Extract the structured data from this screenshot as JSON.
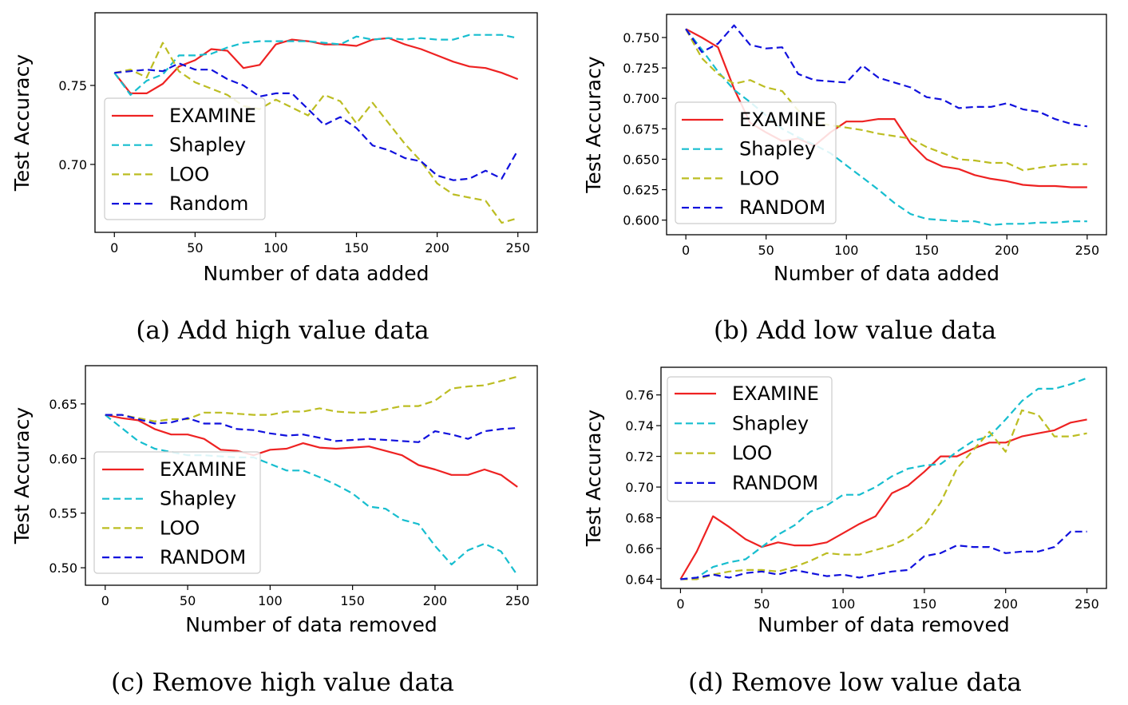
{
  "chart_data": [
    {
      "id": "a",
      "type": "line",
      "caption": "(a) Add high value data",
      "xlabel": "Number of data added",
      "ylabel": "Test Accuracy",
      "xlim": [
        -12,
        262
      ],
      "ylim": [
        0.657,
        0.796
      ],
      "xticks": [
        0,
        50,
        100,
        150,
        200,
        250
      ],
      "yticks": [
        0.7,
        0.75
      ],
      "ytick_labels": [
        "0.70",
        "0.75"
      ],
      "grid": false,
      "legend_position": "lower-left",
      "x": [
        0,
        10,
        20,
        30,
        40,
        50,
        60,
        70,
        80,
        90,
        100,
        110,
        120,
        130,
        140,
        150,
        160,
        170,
        180,
        190,
        200,
        210,
        220,
        230,
        240,
        250
      ],
      "series": [
        {
          "name": "EXAMINE",
          "color": "#ee2222",
          "style": "solid",
          "values": [
            0.758,
            0.745,
            0.745,
            0.751,
            0.762,
            0.766,
            0.773,
            0.772,
            0.761,
            0.763,
            0.776,
            0.779,
            0.778,
            0.776,
            0.776,
            0.775,
            0.779,
            0.78,
            0.776,
            0.773,
            0.769,
            0.765,
            0.762,
            0.761,
            0.758,
            0.754
          ]
        },
        {
          "name": "Shapley",
          "color": "#17becf",
          "style": "dashed",
          "values": [
            0.758,
            0.744,
            0.753,
            0.757,
            0.769,
            0.769,
            0.77,
            0.774,
            0.777,
            0.778,
            0.778,
            0.778,
            0.778,
            0.777,
            0.776,
            0.781,
            0.779,
            0.78,
            0.779,
            0.78,
            0.779,
            0.779,
            0.782,
            0.782,
            0.782,
            0.78
          ]
        },
        {
          "name": "LOO",
          "color": "#bcbd22",
          "style": "dashed",
          "values": [
            0.758,
            0.76,
            0.755,
            0.777,
            0.759,
            0.752,
            0.748,
            0.744,
            0.737,
            0.735,
            0.741,
            0.736,
            0.731,
            0.744,
            0.74,
            0.726,
            0.739,
            0.726,
            0.713,
            0.702,
            0.688,
            0.681,
            0.679,
            0.677,
            0.663,
            0.666
          ]
        },
        {
          "name": "Random",
          "color": "#1111dd",
          "style": "dashed",
          "values": [
            0.758,
            0.759,
            0.76,
            0.759,
            0.764,
            0.76,
            0.76,
            0.754,
            0.75,
            0.743,
            0.745,
            0.745,
            0.735,
            0.725,
            0.73,
            0.723,
            0.712,
            0.709,
            0.704,
            0.702,
            0.693,
            0.69,
            0.691,
            0.696,
            0.691,
            0.709
          ]
        }
      ]
    },
    {
      "id": "b",
      "type": "line",
      "caption": "(b) Add low value data",
      "xlabel": "Number of data added",
      "ylabel": "Test Accuracy",
      "xlim": [
        -12,
        262
      ],
      "ylim": [
        0.588,
        0.769
      ],
      "xticks": [
        0,
        50,
        100,
        150,
        200,
        250
      ],
      "yticks": [
        0.6,
        0.625,
        0.65,
        0.675,
        0.7,
        0.725,
        0.75
      ],
      "ytick_labels": [
        "0.600",
        "0.625",
        "0.650",
        "0.675",
        "0.700",
        "0.725",
        "0.750"
      ],
      "grid": false,
      "legend_position": "lower-left",
      "x": [
        0,
        10,
        20,
        30,
        40,
        50,
        60,
        70,
        80,
        90,
        100,
        110,
        120,
        130,
        140,
        150,
        160,
        170,
        180,
        190,
        200,
        210,
        220,
        230,
        240,
        250
      ],
      "series": [
        {
          "name": "EXAMINE",
          "color": "#ee2222",
          "style": "solid",
          "values": [
            0.757,
            0.75,
            0.742,
            0.708,
            0.68,
            0.672,
            0.665,
            0.667,
            0.661,
            0.672,
            0.681,
            0.681,
            0.683,
            0.683,
            0.663,
            0.65,
            0.644,
            0.642,
            0.637,
            0.634,
            0.632,
            0.629,
            0.628,
            0.628,
            0.627,
            0.627
          ]
        },
        {
          "name": "Shapley",
          "color": "#17becf",
          "style": "dashed",
          "values": [
            0.757,
            0.74,
            0.722,
            0.707,
            0.697,
            0.686,
            0.675,
            0.668,
            0.662,
            0.655,
            0.645,
            0.635,
            0.625,
            0.614,
            0.605,
            0.601,
            0.6,
            0.599,
            0.599,
            0.596,
            0.597,
            0.597,
            0.598,
            0.598,
            0.599,
            0.599
          ]
        },
        {
          "name": "LOO",
          "color": "#bcbd22",
          "style": "dashed",
          "values": [
            0.757,
            0.733,
            0.72,
            0.712,
            0.715,
            0.709,
            0.706,
            0.69,
            0.68,
            0.678,
            0.676,
            0.674,
            0.671,
            0.669,
            0.667,
            0.66,
            0.655,
            0.65,
            0.649,
            0.647,
            0.647,
            0.641,
            0.643,
            0.645,
            0.646,
            0.646
          ]
        },
        {
          "name": "RANDOM",
          "color": "#1111dd",
          "style": "dashed",
          "values": [
            0.757,
            0.738,
            0.745,
            0.76,
            0.744,
            0.741,
            0.742,
            0.72,
            0.715,
            0.714,
            0.713,
            0.727,
            0.717,
            0.713,
            0.709,
            0.701,
            0.699,
            0.692,
            0.693,
            0.693,
            0.696,
            0.691,
            0.689,
            0.683,
            0.679,
            0.677
          ]
        }
      ]
    },
    {
      "id": "c",
      "type": "line",
      "caption": "(c) Remove high value data",
      "xlabel": "Number of data removed",
      "ylabel": "Test Accuracy",
      "xlim": [
        -12,
        262
      ],
      "ylim": [
        0.484,
        0.685
      ],
      "xticks": [
        0,
        50,
        100,
        150,
        200,
        250
      ],
      "yticks": [
        0.5,
        0.55,
        0.6,
        0.65
      ],
      "ytick_labels": [
        "0.50",
        "0.55",
        "0.60",
        "0.65"
      ],
      "grid": false,
      "legend_position": "lower-left",
      "x": [
        0,
        10,
        20,
        30,
        40,
        50,
        60,
        70,
        80,
        90,
        100,
        110,
        120,
        130,
        140,
        150,
        160,
        170,
        180,
        190,
        200,
        210,
        220,
        230,
        240,
        250
      ],
      "series": [
        {
          "name": "EXAMINE",
          "color": "#ee2222",
          "style": "solid",
          "values": [
            0.64,
            0.637,
            0.635,
            0.627,
            0.622,
            0.622,
            0.618,
            0.608,
            0.607,
            0.603,
            0.608,
            0.609,
            0.614,
            0.61,
            0.609,
            0.61,
            0.611,
            0.607,
            0.603,
            0.594,
            0.59,
            0.585,
            0.585,
            0.59,
            0.585,
            0.574
          ]
        },
        {
          "name": "Shapley",
          "color": "#17becf",
          "style": "dashed",
          "values": [
            0.64,
            0.628,
            0.616,
            0.609,
            0.606,
            0.603,
            0.603,
            0.602,
            0.601,
            0.601,
            0.595,
            0.589,
            0.589,
            0.583,
            0.576,
            0.568,
            0.556,
            0.554,
            0.544,
            0.54,
            0.52,
            0.503,
            0.516,
            0.522,
            0.515,
            0.493
          ]
        },
        {
          "name": "LOO",
          "color": "#bcbd22",
          "style": "dashed",
          "values": [
            0.64,
            0.64,
            0.637,
            0.634,
            0.636,
            0.636,
            0.642,
            0.642,
            0.641,
            0.64,
            0.64,
            0.643,
            0.643,
            0.646,
            0.643,
            0.642,
            0.642,
            0.645,
            0.648,
            0.648,
            0.653,
            0.664,
            0.666,
            0.667,
            0.671,
            0.675
          ]
        },
        {
          "name": "RANDOM",
          "color": "#1111dd",
          "style": "dashed",
          "values": [
            0.64,
            0.64,
            0.636,
            0.632,
            0.633,
            0.637,
            0.632,
            0.632,
            0.627,
            0.626,
            0.623,
            0.621,
            0.622,
            0.619,
            0.616,
            0.617,
            0.618,
            0.617,
            0.616,
            0.615,
            0.625,
            0.622,
            0.618,
            0.625,
            0.627,
            0.628
          ]
        }
      ]
    },
    {
      "id": "d",
      "type": "line",
      "caption": "(d) Remove low value data",
      "xlabel": "Number of data removed",
      "ylabel": "Test Accuracy",
      "xlim": [
        -12,
        262
      ],
      "ylim": [
        0.634,
        0.778
      ],
      "xticks": [
        0,
        50,
        100,
        150,
        200,
        250
      ],
      "yticks": [
        0.64,
        0.66,
        0.68,
        0.7,
        0.72,
        0.74,
        0.76
      ],
      "ytick_labels": [
        "0.64",
        "0.66",
        "0.68",
        "0.70",
        "0.72",
        "0.74",
        "0.76"
      ],
      "grid": false,
      "legend_position": "upper-left",
      "x": [
        0,
        10,
        20,
        30,
        40,
        50,
        60,
        70,
        80,
        90,
        100,
        110,
        120,
        130,
        140,
        150,
        160,
        170,
        180,
        190,
        200,
        210,
        220,
        230,
        240,
        250
      ],
      "series": [
        {
          "name": "EXAMINE",
          "color": "#ee2222",
          "style": "solid",
          "values": [
            0.64,
            0.658,
            0.681,
            0.674,
            0.666,
            0.661,
            0.664,
            0.662,
            0.662,
            0.664,
            0.67,
            0.676,
            0.681,
            0.696,
            0.701,
            0.71,
            0.72,
            0.72,
            0.725,
            0.729,
            0.729,
            0.733,
            0.735,
            0.737,
            0.742,
            0.744
          ]
        },
        {
          "name": "Shapley",
          "color": "#17becf",
          "style": "dashed",
          "values": [
            0.64,
            0.641,
            0.648,
            0.651,
            0.653,
            0.661,
            0.669,
            0.675,
            0.684,
            0.688,
            0.695,
            0.695,
            0.7,
            0.707,
            0.712,
            0.714,
            0.715,
            0.723,
            0.73,
            0.733,
            0.744,
            0.756,
            0.764,
            0.764,
            0.767,
            0.771
          ]
        },
        {
          "name": "LOO",
          "color": "#bcbd22",
          "style": "dashed",
          "values": [
            0.64,
            0.64,
            0.643,
            0.645,
            0.646,
            0.646,
            0.645,
            0.648,
            0.652,
            0.657,
            0.656,
            0.656,
            0.659,
            0.662,
            0.667,
            0.675,
            0.69,
            0.712,
            0.724,
            0.736,
            0.723,
            0.75,
            0.747,
            0.733,
            0.733,
            0.735
          ]
        },
        {
          "name": "RANDOM",
          "color": "#1111dd",
          "style": "dashed",
          "values": [
            0.64,
            0.641,
            0.643,
            0.641,
            0.644,
            0.645,
            0.643,
            0.646,
            0.644,
            0.642,
            0.643,
            0.641,
            0.643,
            0.645,
            0.646,
            0.655,
            0.657,
            0.662,
            0.661,
            0.661,
            0.657,
            0.658,
            0.658,
            0.661,
            0.671,
            0.671
          ]
        }
      ]
    }
  ]
}
